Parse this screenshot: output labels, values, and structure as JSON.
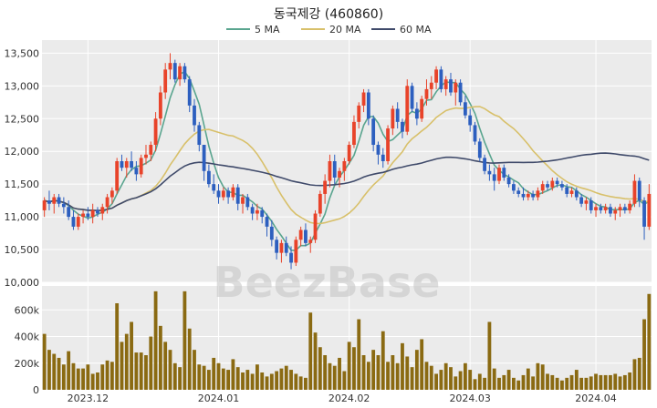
{
  "chart_data": {
    "type": "candlestick",
    "title": "동국제강 (460860)",
    "watermark": "BeezBase",
    "legend": [
      {
        "name": "5 MA",
        "color": "#5aa58f"
      },
      {
        "name": "20 MA",
        "color": "#d8c06a"
      },
      {
        "name": "60 MA",
        "color": "#3f4a6a"
      }
    ],
    "colors": {
      "up": "#e8432a",
      "down": "#2d5fbf",
      "volume": "#8a6a12",
      "panel": "#ebebeb",
      "grid": "#ffffff"
    },
    "price_axis": {
      "ylim": [
        10000,
        13700
      ],
      "ticks": [
        10000,
        10500,
        11000,
        11500,
        12000,
        12500,
        13000,
        13500
      ],
      "tick_labels": [
        "10,000",
        "10,500",
        "11,000",
        "11,500",
        "12,000",
        "12,500",
        "13,000",
        "13,500"
      ]
    },
    "volume_axis": {
      "ylim": [
        0,
        780000
      ],
      "ticks": [
        0,
        200000,
        400000,
        600000
      ],
      "tick_labels": [
        "0",
        "200k",
        "400k",
        "600k"
      ]
    },
    "x_labels": [
      {
        "index": 9,
        "label": "2023.12"
      },
      {
        "index": 36,
        "label": "2024.01"
      },
      {
        "index": 63,
        "label": "2024.02"
      },
      {
        "index": 88,
        "label": "2024.03"
      },
      {
        "index": 114,
        "label": "2024.04"
      }
    ],
    "candles": [
      [
        11100,
        11300,
        11000,
        11250,
        420000
      ],
      [
        11250,
        11400,
        11100,
        11200,
        300000
      ],
      [
        11200,
        11350,
        11050,
        11300,
        270000
      ],
      [
        11300,
        11350,
        11150,
        11200,
        240000
      ],
      [
        11200,
        11300,
        11050,
        11150,
        190000
      ],
      [
        11150,
        11250,
        10950,
        11000,
        290000
      ],
      [
        11000,
        11100,
        10800,
        10850,
        200000
      ],
      [
        10850,
        11050,
        10800,
        11000,
        160000
      ],
      [
        11000,
        11100,
        10900,
        11050,
        160000
      ],
      [
        11050,
        11150,
        10950,
        11000,
        190000
      ],
      [
        11000,
        11200,
        10900,
        11100,
        120000
      ],
      [
        11100,
        11150,
        11000,
        11050,
        130000
      ],
      [
        11050,
        11200,
        10950,
        11150,
        190000
      ],
      [
        11150,
        11350,
        11050,
        11300,
        220000
      ],
      [
        11300,
        11450,
        11200,
        11400,
        210000
      ],
      [
        11400,
        11900,
        11350,
        11850,
        650000
      ],
      [
        11850,
        11950,
        11700,
        11750,
        360000
      ],
      [
        11750,
        11900,
        11600,
        11850,
        420000
      ],
      [
        11850,
        12000,
        11700,
        11750,
        510000
      ],
      [
        11750,
        11850,
        11550,
        11650,
        280000
      ],
      [
        11650,
        11950,
        11600,
        11900,
        280000
      ],
      [
        11900,
        12100,
        11800,
        11950,
        260000
      ],
      [
        11950,
        12150,
        11850,
        12100,
        400000
      ],
      [
        12100,
        12600,
        12000,
        12500,
        740000
      ],
      [
        12500,
        13000,
        12400,
        12900,
        480000
      ],
      [
        12900,
        13350,
        12800,
        13250,
        360000
      ],
      [
        13250,
        13500,
        13100,
        13350,
        300000
      ],
      [
        13350,
        13400,
        13050,
        13100,
        200000
      ],
      [
        13100,
        13350,
        13000,
        13300,
        170000
      ],
      [
        13300,
        13350,
        13050,
        13100,
        740000
      ],
      [
        13100,
        13150,
        12600,
        12700,
        460000
      ],
      [
        12700,
        12800,
        12300,
        12400,
        300000
      ],
      [
        12400,
        12450,
        12000,
        12100,
        190000
      ],
      [
        12100,
        12100,
        11550,
        11700,
        180000
      ],
      [
        11700,
        11800,
        11450,
        11500,
        150000
      ],
      [
        11500,
        11650,
        11350,
        11400,
        240000
      ],
      [
        11400,
        11500,
        11200,
        11300,
        200000
      ],
      [
        11300,
        11450,
        11250,
        11400,
        160000
      ],
      [
        11400,
        11450,
        11200,
        11300,
        150000
      ],
      [
        11300,
        11500,
        11250,
        11450,
        230000
      ],
      [
        11450,
        11500,
        11100,
        11200,
        170000
      ],
      [
        11200,
        11350,
        11050,
        11300,
        130000
      ],
      [
        11300,
        11350,
        11100,
        11150,
        150000
      ],
      [
        11150,
        11200,
        10950,
        11050,
        120000
      ],
      [
        11050,
        11200,
        10950,
        11100,
        190000
      ],
      [
        11100,
        11150,
        10900,
        11000,
        130000
      ],
      [
        11000,
        11050,
        10700,
        10850,
        100000
      ],
      [
        10850,
        10950,
        10550,
        10650,
        120000
      ],
      [
        10650,
        10700,
        10350,
        10450,
        140000
      ],
      [
        10450,
        10650,
        10300,
        10600,
        160000
      ],
      [
        10600,
        10700,
        10400,
        10450,
        180000
      ],
      [
        10450,
        10550,
        10200,
        10300,
        150000
      ],
      [
        10300,
        10700,
        10250,
        10650,
        120000
      ],
      [
        10650,
        10850,
        10550,
        10800,
        100000
      ],
      [
        10800,
        10900,
        10550,
        10600,
        90000
      ],
      [
        10600,
        10700,
        10450,
        10650,
        580000
      ],
      [
        10650,
        11100,
        10600,
        11050,
        430000
      ],
      [
        11050,
        11400,
        11000,
        11350,
        320000
      ],
      [
        11350,
        11650,
        11200,
        11550,
        260000
      ],
      [
        11550,
        11950,
        11450,
        11850,
        200000
      ],
      [
        11850,
        11950,
        11500,
        11600,
        180000
      ],
      [
        11600,
        11750,
        11450,
        11700,
        240000
      ],
      [
        11700,
        11900,
        11550,
        11850,
        140000
      ],
      [
        11850,
        12150,
        11800,
        12100,
        360000
      ],
      [
        12100,
        12550,
        12050,
        12450,
        320000
      ],
      [
        12450,
        12750,
        12350,
        12700,
        530000
      ],
      [
        12700,
        12950,
        12600,
        12900,
        260000
      ],
      [
        12900,
        12950,
        12400,
        12500,
        210000
      ],
      [
        12500,
        12550,
        12000,
        12100,
        300000
      ],
      [
        12100,
        12150,
        11800,
        11950,
        260000
      ],
      [
        11950,
        12050,
        11750,
        11850,
        440000
      ],
      [
        11850,
        12400,
        11800,
        12350,
        210000
      ],
      [
        12350,
        12700,
        12250,
        12650,
        260000
      ],
      [
        12650,
        12750,
        12350,
        12450,
        200000
      ],
      [
        12450,
        12500,
        12200,
        12300,
        350000
      ],
      [
        12300,
        13100,
        12250,
        13000,
        250000
      ],
      [
        13000,
        13050,
        12600,
        12650,
        170000
      ],
      [
        12650,
        12750,
        12400,
        12500,
        300000
      ],
      [
        12500,
        12850,
        12450,
        12800,
        380000
      ],
      [
        12800,
        13100,
        12700,
        12950,
        210000
      ],
      [
        12950,
        13150,
        12800,
        13050,
        180000
      ],
      [
        13050,
        13300,
        12950,
        13250,
        120000
      ],
      [
        13250,
        13300,
        12900,
        12950,
        150000
      ],
      [
        12950,
        13150,
        12850,
        13100,
        200000
      ],
      [
        13100,
        13200,
        12850,
        12900,
        170000
      ],
      [
        12900,
        13100,
        12700,
        13050,
        100000
      ],
      [
        13050,
        13100,
        12700,
        12750,
        140000
      ],
      [
        12750,
        12850,
        12500,
        12550,
        200000
      ],
      [
        12550,
        12650,
        12300,
        12400,
        150000
      ],
      [
        12400,
        12450,
        12100,
        12150,
        80000
      ],
      [
        12150,
        12200,
        11850,
        11900,
        120000
      ],
      [
        11900,
        11950,
        11650,
        11700,
        90000
      ],
      [
        11700,
        11800,
        11550,
        11650,
        510000
      ],
      [
        11650,
        11750,
        11400,
        11550,
        160000
      ],
      [
        11550,
        11800,
        11500,
        11750,
        90000
      ],
      [
        11750,
        11800,
        11550,
        11600,
        110000
      ],
      [
        11600,
        11650,
        11450,
        11500,
        150000
      ],
      [
        11500,
        11550,
        11350,
        11400,
        90000
      ],
      [
        11400,
        11450,
        11300,
        11350,
        70000
      ],
      [
        11350,
        11450,
        11250,
        11300,
        110000
      ],
      [
        11300,
        11400,
        11250,
        11350,
        160000
      ],
      [
        11350,
        11400,
        11250,
        11300,
        100000
      ],
      [
        11300,
        11450,
        11250,
        11400,
        200000
      ],
      [
        11400,
        11550,
        11350,
        11500,
        190000
      ],
      [
        11500,
        11550,
        11400,
        11450,
        120000
      ],
      [
        11450,
        11600,
        11400,
        11550,
        110000
      ],
      [
        11550,
        11600,
        11450,
        11500,
        90000
      ],
      [
        11500,
        11550,
        11400,
        11450,
        70000
      ],
      [
        11450,
        11500,
        11300,
        11350,
        90000
      ],
      [
        11350,
        11450,
        11300,
        11400,
        110000
      ],
      [
        11400,
        11450,
        11250,
        11300,
        150000
      ],
      [
        11300,
        11350,
        11150,
        11200,
        90000
      ],
      [
        11200,
        11300,
        11100,
        11250,
        90000
      ],
      [
        11250,
        11300,
        11050,
        11100,
        100000
      ],
      [
        11100,
        11200,
        11000,
        11150,
        120000
      ],
      [
        11150,
        11200,
        11050,
        11100,
        110000
      ],
      [
        11100,
        11200,
        11050,
        11150,
        110000
      ],
      [
        11150,
        11200,
        11000,
        11050,
        110000
      ],
      [
        11050,
        11150,
        10950,
        11100,
        120000
      ],
      [
        11100,
        11200,
        11000,
        11150,
        100000
      ],
      [
        11150,
        11200,
        11050,
        11100,
        110000
      ],
      [
        11100,
        11250,
        11050,
        11200,
        130000
      ],
      [
        11200,
        11650,
        11150,
        11550,
        230000
      ],
      [
        11550,
        11600,
        11150,
        11250,
        240000
      ],
      [
        11250,
        11300,
        10650,
        10850,
        530000
      ],
      [
        10850,
        11500,
        10800,
        11350,
        720000
      ]
    ]
  }
}
